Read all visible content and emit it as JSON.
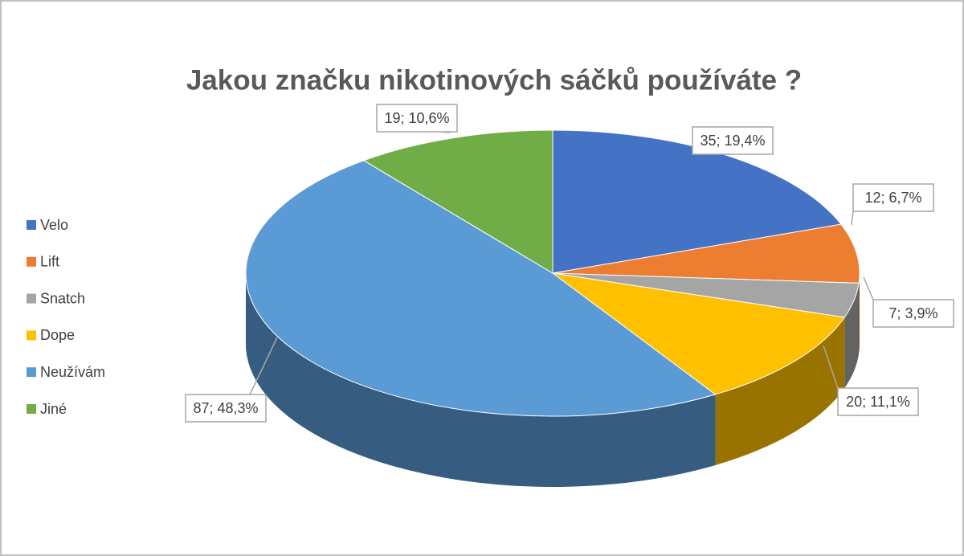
{
  "chart_data": {
    "type": "pie",
    "title": "Jakou značku nikotinových sáčků používáte ?",
    "categories": [
      "Velo",
      "Lift",
      "Snatch",
      "Dope",
      "Neužívám",
      "Jiné"
    ],
    "values": [
      35,
      12,
      7,
      20,
      87,
      19
    ],
    "value_labels": [
      "35; 19,4%",
      "12; 6,7%",
      "7; 3,9%",
      "20; 11,1%",
      "87; 48,3%",
      "19; 10,6%"
    ],
    "colors": [
      "#4472c4",
      "#ed7d31",
      "#a5a5a5",
      "#ffc000",
      "#5b9bd5",
      "#70ad47"
    ],
    "legend": "left"
  }
}
